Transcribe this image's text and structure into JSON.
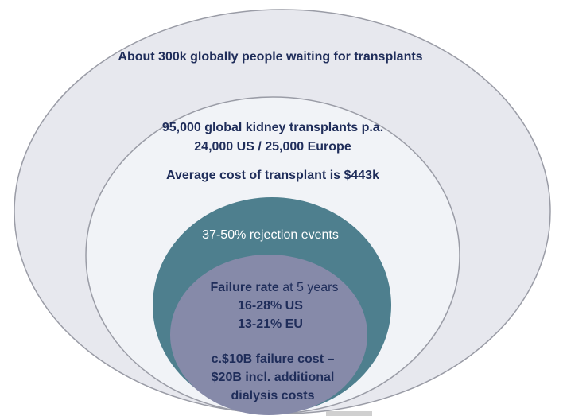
{
  "outer": {
    "label": "About 300k globally people waiting for transplants"
  },
  "middle": {
    "lines": [
      "95,000 global kidney transplants p.a.",
      "24,000 US / 25,000 Europe",
      "Average cost of transplant is $443k"
    ]
  },
  "rejection": {
    "label": "37-50% rejection events"
  },
  "failure": {
    "heading_bold": "Failure rate",
    "heading_rest": " at 5 years",
    "lines": [
      "16-28% US",
      "13-21% EU"
    ],
    "cost_lines": [
      "c.$10B failure cost –",
      "$20B incl. additional",
      "dialysis costs"
    ]
  }
}
